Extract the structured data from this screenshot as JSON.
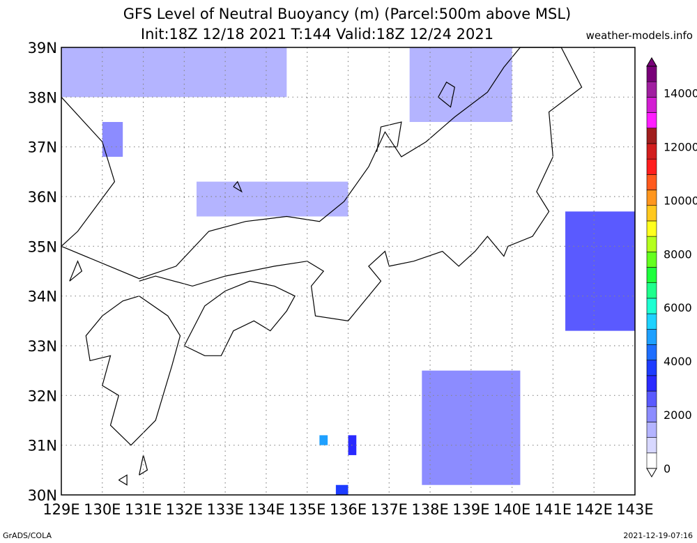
{
  "title_line1": "GFS Level of Neutral Buoyancy (m) (Parcel:500m above MSL)",
  "title_line2": "Init:18Z 12/18 2021 T:144 Valid:18Z 12/24 2021",
  "site": "weather-models.info",
  "footer_left": "GrADS/COLA",
  "footer_right": "2021-12-19-07:16",
  "lon_labels": [
    "129E",
    "130E",
    "131E",
    "132E",
    "133E",
    "134E",
    "135E",
    "136E",
    "137E",
    "138E",
    "139E",
    "140E",
    "141E",
    "142E",
    "143E"
  ],
  "lat_labels": [
    "30N",
    "31N",
    "32N",
    "33N",
    "34N",
    "35N",
    "36N",
    "37N",
    "38N",
    "39N"
  ],
  "colorbar_labels": [
    "0",
    "2000",
    "4000",
    "6000",
    "8000",
    "10000",
    "12000",
    "14000"
  ],
  "colorbar_colors": [
    "#ffffff",
    "#d8d8ff",
    "#b4b4ff",
    "#8c8cff",
    "#5a5aff",
    "#2a2aff",
    "#1e3cff",
    "#1e6eff",
    "#1ea0ff",
    "#1ed2ff",
    "#1effd2",
    "#1eff8c",
    "#1eff3c",
    "#64ff1e",
    "#b4ff1e",
    "#ffff1e",
    "#ffc81e",
    "#ff961e",
    "#ff5a1e",
    "#ff1e1e",
    "#d21e1e",
    "#a01e1e",
    "#ff1eff",
    "#d21ed2",
    "#a01ea0",
    "#780078"
  ],
  "chart_data": {
    "type": "heatmap",
    "variable": "Level of Neutral Buoyancy (m)",
    "units": "m",
    "lon_range": [
      129,
      143
    ],
    "lat_range": [
      30,
      39
    ],
    "value_range": [
      0,
      15000
    ],
    "grid_lines": true,
    "regions": [
      {
        "lon": [
          129.0,
          134.5
        ],
        "lat": [
          38.0,
          39.0
        ],
        "value": 1500
      },
      {
        "lon": [
          137.5,
          140.0
        ],
        "lat": [
          37.5,
          39.0
        ],
        "value": 1500
      },
      {
        "lon": [
          132.3,
          136.0
        ],
        "lat": [
          35.6,
          36.3
        ],
        "value": 1500
      },
      {
        "lon": [
          130.0,
          130.5
        ],
        "lat": [
          36.8,
          37.5
        ],
        "value": 1800
      },
      {
        "lon": [
          137.8,
          140.2
        ],
        "lat": [
          30.2,
          32.5
        ],
        "value": 2000
      },
      {
        "lon": [
          141.3,
          143.0
        ],
        "lat": [
          33.3,
          35.7
        ],
        "value": 2800
      },
      {
        "lon": [
          135.3,
          135.5
        ],
        "lat": [
          31.0,
          31.2
        ],
        "value": 4800
      },
      {
        "lon": [
          136.0,
          136.2
        ],
        "lat": [
          30.8,
          31.2
        ],
        "value": 3000
      },
      {
        "lon": [
          135.7,
          136.0
        ],
        "lat": [
          30.0,
          30.2
        ],
        "value": 3500
      }
    ]
  }
}
